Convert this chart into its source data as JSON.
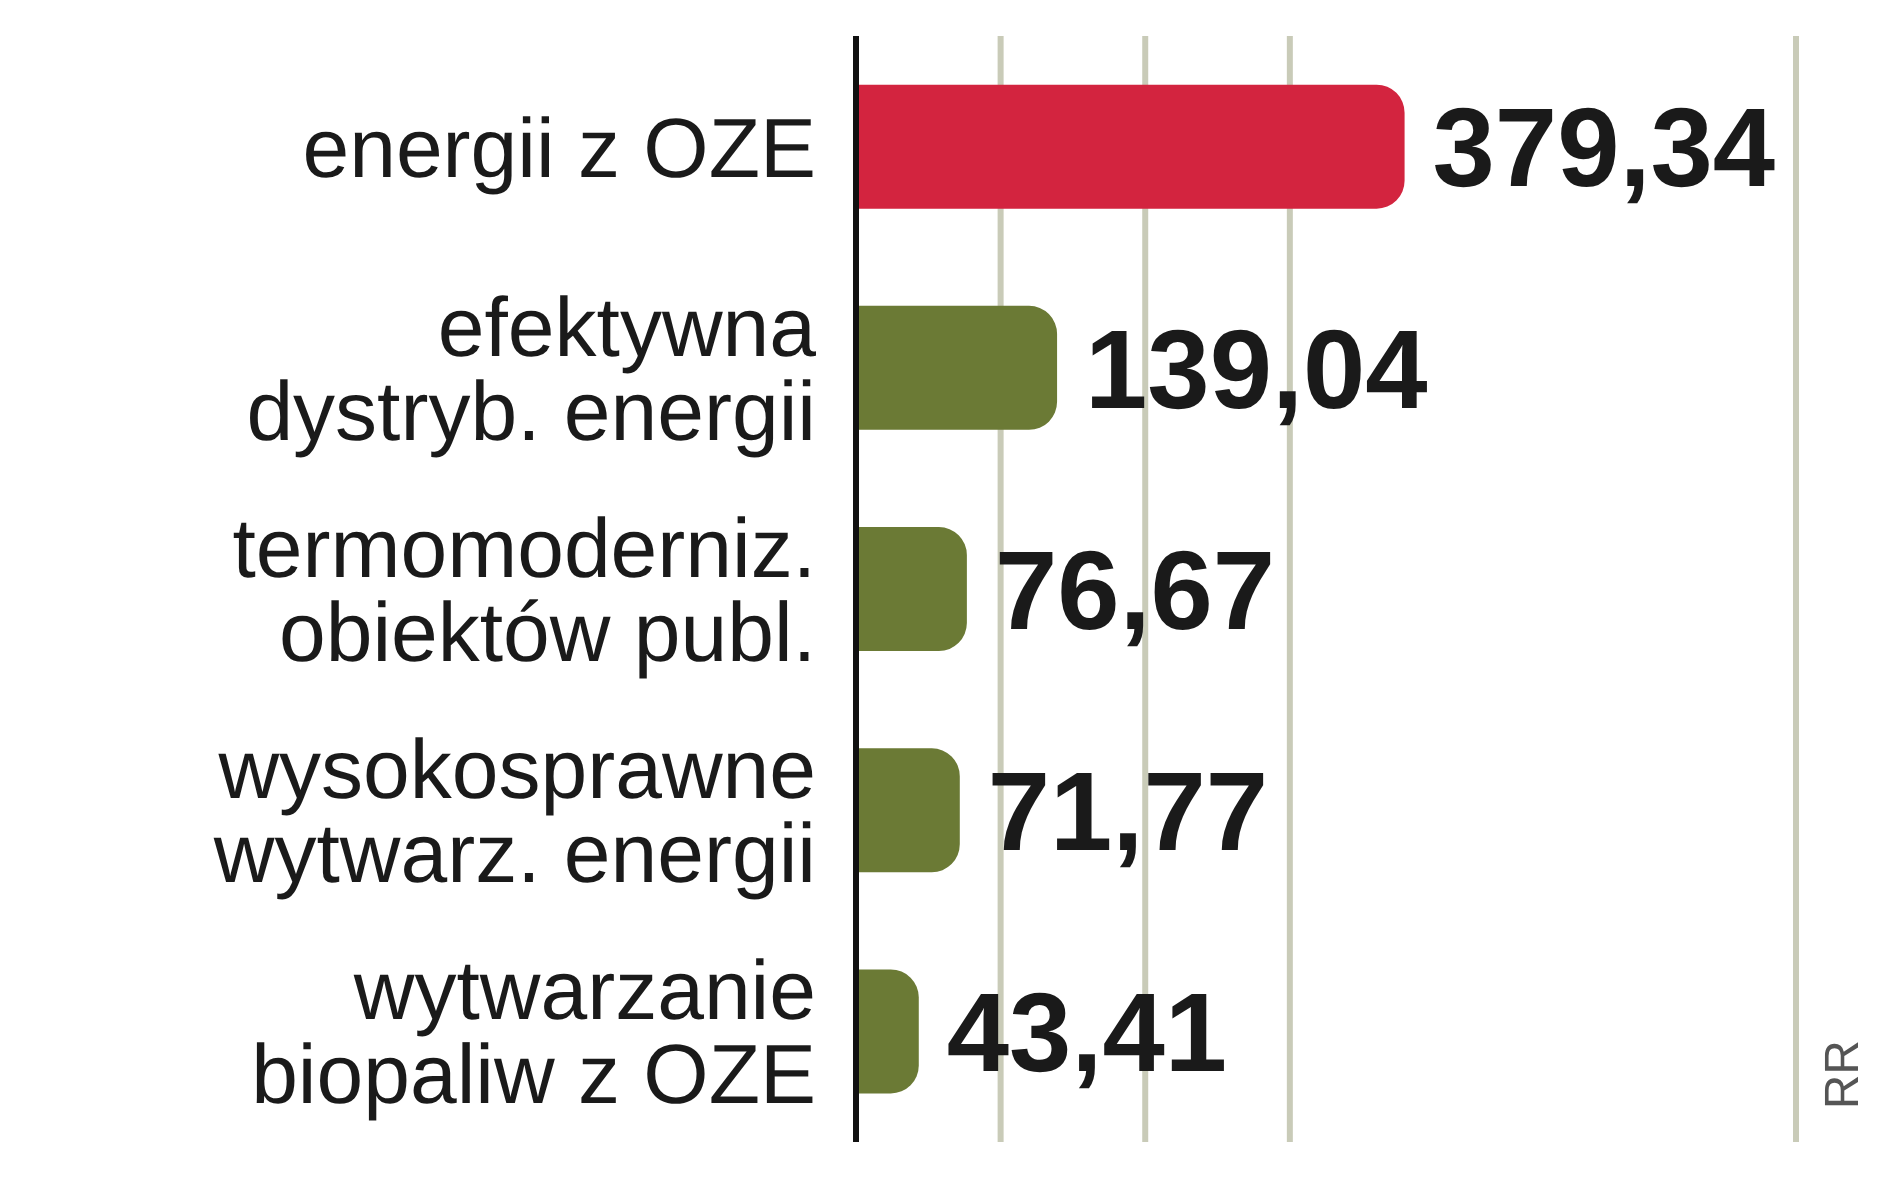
{
  "chart_data": {
    "type": "bar",
    "orientation": "horizontal",
    "categories": [
      "energii z OZE",
      "efektywna\ndystryb. energii",
      "termomoderniz.\nobiektów publ.",
      "wysokosprawne\nwytwarz. energii",
      "wytwarzanie\nbiopaliw z OZE"
    ],
    "values": [
      379.34,
      139.04,
      76.67,
      71.77,
      43.41
    ],
    "value_labels": [
      "379,34",
      "139,04",
      "76,67",
      "71,77",
      "43,41"
    ],
    "colors": [
      "#d3243f",
      "#6b7a35",
      "#6b7a35",
      "#6b7a35",
      "#6b7a35"
    ],
    "xlim": [
      0,
      650
    ],
    "xticks": [
      {
        "value": 100,
        "label": null
      },
      {
        "value": 200,
        "label": null
      },
      {
        "value": 300,
        "label": null
      }
    ],
    "grid": "x",
    "annotations": [
      "RR"
    ]
  }
}
